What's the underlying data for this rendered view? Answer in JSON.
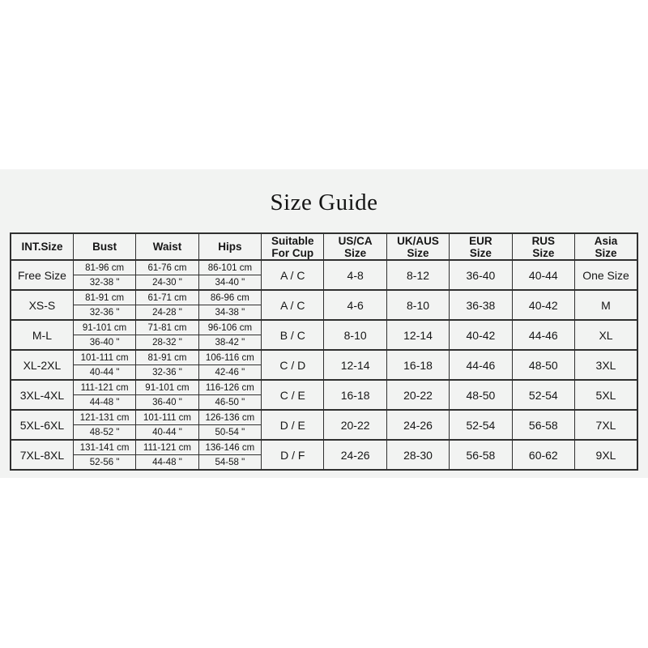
{
  "page": {
    "title": "Size Guide",
    "background_color": "#ffffff",
    "panel_background_color": "#f2f3f2",
    "border_color": "#303030",
    "text_color": "#161616"
  },
  "table": {
    "headers": [
      {
        "id": "int_size",
        "label": "INT.Size"
      },
      {
        "id": "bust",
        "label": "Bust"
      },
      {
        "id": "waist",
        "label": "Waist"
      },
      {
        "id": "hips",
        "label": "Hips"
      },
      {
        "id": "cup",
        "label": "Suitable\nFor Cup"
      },
      {
        "id": "us_ca",
        "label": "US/CA\nSize"
      },
      {
        "id": "uk_aus",
        "label": "UK/AUS\nSize"
      },
      {
        "id": "eur",
        "label": "EUR\nSize"
      },
      {
        "id": "rus",
        "label": "RUS\nSize"
      },
      {
        "id": "asia",
        "label": "Asia\nSize"
      }
    ],
    "rows": [
      {
        "int_size": "Free Size",
        "bust_cm": "81-96 cm",
        "bust_in": "32-38 \"",
        "waist_cm": "61-76 cm",
        "waist_in": "24-30 \"",
        "hips_cm": "86-101 cm",
        "hips_in": "34-40 \"",
        "cup": "A / C",
        "us_ca": "4-8",
        "uk_aus": "8-12",
        "eur": "36-40",
        "rus": "40-44",
        "asia": "One Size"
      },
      {
        "int_size": "XS-S",
        "bust_cm": "81-91 cm",
        "bust_in": "32-36 \"",
        "waist_cm": "61-71 cm",
        "waist_in": "24-28 \"",
        "hips_cm": "86-96 cm",
        "hips_in": "34-38 \"",
        "cup": "A / C",
        "us_ca": "4-6",
        "uk_aus": "8-10",
        "eur": "36-38",
        "rus": "40-42",
        "asia": "M"
      },
      {
        "int_size": "M-L",
        "bust_cm": "91-101 cm",
        "bust_in": "36-40 \"",
        "waist_cm": "71-81 cm",
        "waist_in": "28-32 \"",
        "hips_cm": "96-106 cm",
        "hips_in": "38-42 \"",
        "cup": "B / C",
        "us_ca": "8-10",
        "uk_aus": "12-14",
        "eur": "40-42",
        "rus": "44-46",
        "asia": "XL"
      },
      {
        "int_size": "XL-2XL",
        "bust_cm": "101-111 cm",
        "bust_in": "40-44 \"",
        "waist_cm": "81-91 cm",
        "waist_in": "32-36 \"",
        "hips_cm": "106-116 cm",
        "hips_in": "42-46 \"",
        "cup": "C / D",
        "us_ca": "12-14",
        "uk_aus": "16-18",
        "eur": "44-46",
        "rus": "48-50",
        "asia": "3XL"
      },
      {
        "int_size": "3XL-4XL",
        "bust_cm": "111-121 cm",
        "bust_in": "44-48 \"",
        "waist_cm": "91-101 cm",
        "waist_in": "36-40 \"",
        "hips_cm": "116-126 cm",
        "hips_in": "46-50 \"",
        "cup": "C / E",
        "us_ca": "16-18",
        "uk_aus": "20-22",
        "eur": "48-50",
        "rus": "52-54",
        "asia": "5XL"
      },
      {
        "int_size": "5XL-6XL",
        "bust_cm": "121-131 cm",
        "bust_in": "48-52 \"",
        "waist_cm": "101-111 cm",
        "waist_in": "40-44 \"",
        "hips_cm": "126-136 cm",
        "hips_in": "50-54 \"",
        "cup": "D / E",
        "us_ca": "20-22",
        "uk_aus": "24-26",
        "eur": "52-54",
        "rus": "56-58",
        "asia": "7XL"
      },
      {
        "int_size": "7XL-8XL",
        "bust_cm": "131-141 cm",
        "bust_in": "52-56 \"",
        "waist_cm": "111-121 cm",
        "waist_in": "44-48 \"",
        "hips_cm": "136-146 cm",
        "hips_in": "54-58 \"",
        "cup": "D / F",
        "us_ca": "24-26",
        "uk_aus": "28-30",
        "eur": "56-58",
        "rus": "60-62",
        "asia": "9XL"
      }
    ]
  }
}
